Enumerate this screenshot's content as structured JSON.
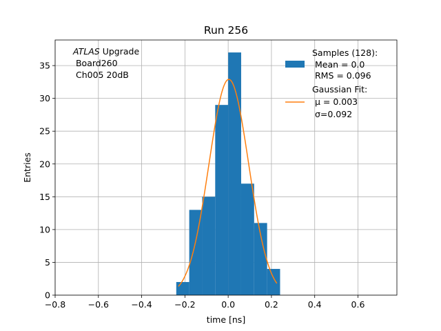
{
  "chart_data": {
    "type": "bar",
    "title": "Run 256",
    "xlabel": "time [ns]",
    "ylabel": "Entries",
    "xlim": [
      -0.8,
      0.78
    ],
    "ylim": [
      0,
      38.9
    ],
    "grid": true,
    "x_ticks": [
      -0.8,
      -0.6,
      -0.4,
      -0.2,
      0.0,
      0.2,
      0.4,
      0.6
    ],
    "x_tick_labels": [
      "−0.8",
      "−0.6",
      "−0.4",
      "−0.2",
      "0.0",
      "0.2",
      "0.4",
      "0.6"
    ],
    "y_ticks": [
      0,
      5,
      10,
      15,
      20,
      25,
      30,
      35
    ],
    "y_tick_labels": [
      "0",
      "5",
      "10",
      "15",
      "20",
      "25",
      "30",
      "35"
    ],
    "histogram": {
      "name": "Samples (128):",
      "color": "#1f77b4",
      "bin_edges": [
        -0.24,
        -0.18,
        -0.12,
        -0.06,
        0.0,
        0.06,
        0.12,
        0.18,
        0.24
      ],
      "counts": [
        2,
        13,
        15,
        29,
        37,
        17,
        11,
        4
      ]
    },
    "fit": {
      "name": "Gaussian Fit:",
      "color": "#ff7f0e",
      "mu": 0.003,
      "sigma": 0.092,
      "amplitude": 32.9,
      "x_range": [
        -0.23,
        0.225
      ]
    },
    "legend": {
      "location": "top-right",
      "samples_label": "Samples (128):",
      "samples_mean": " Mean = 0.0",
      "samples_rms": " RMS = 0.096",
      "fit_label": "Gaussian Fit:",
      "fit_mu": " μ = 0.003",
      "fit_sigma": " σ=0.092"
    },
    "annotation": {
      "atlas": "ATLAS",
      "line1_rest": " Upgrade",
      "line2": " Board260",
      "line3": " Ch005 20dB"
    }
  }
}
